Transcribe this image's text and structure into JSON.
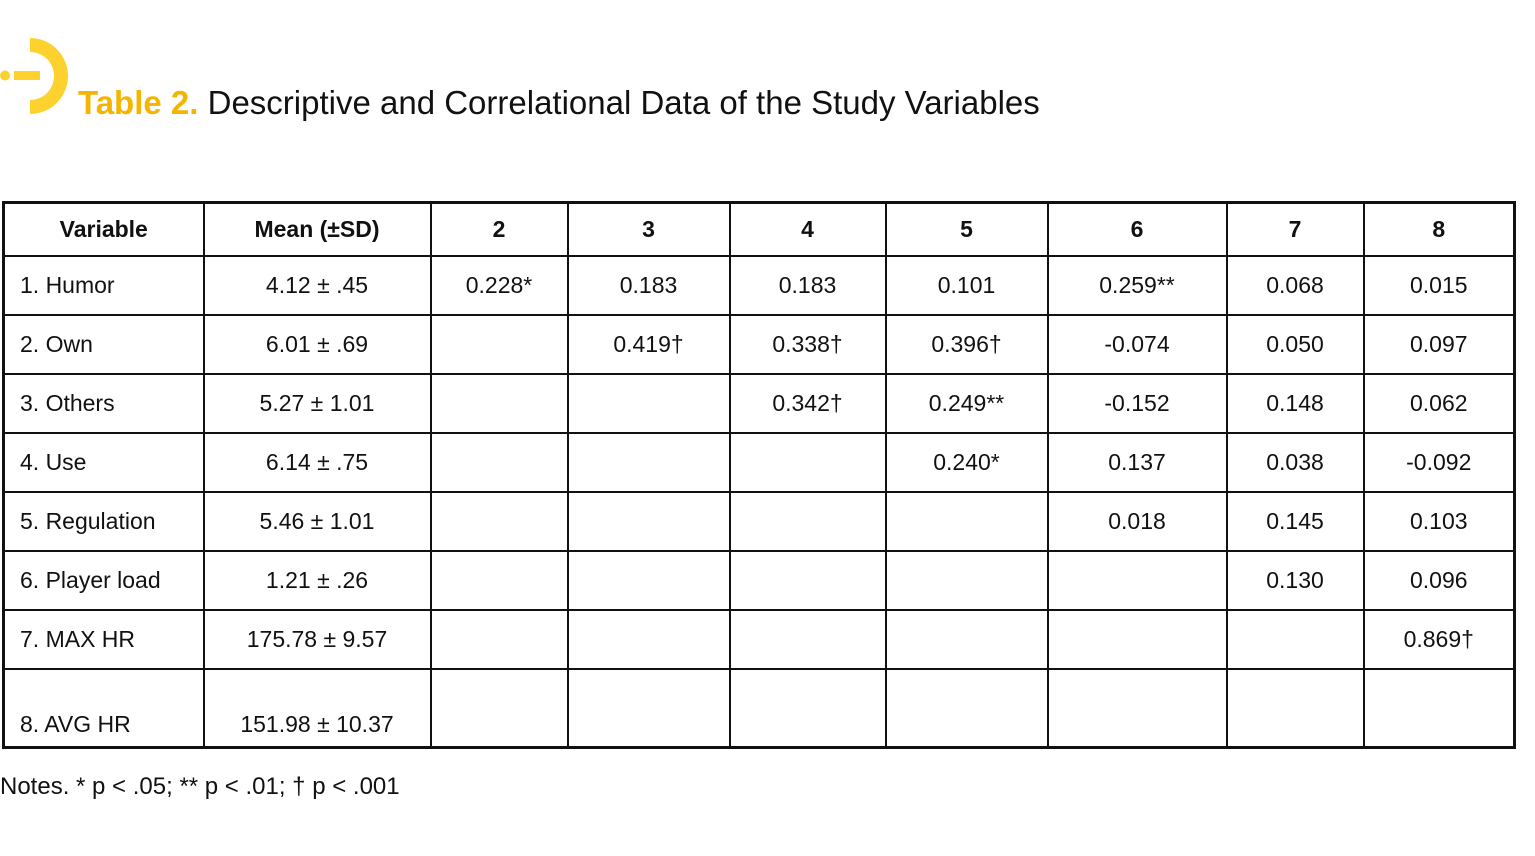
{
  "title": {
    "label": "Table 2.",
    "text": "Descriptive and Correlational Data of the Study Variables"
  },
  "colors": {
    "accent": "#f5b400",
    "logo": "#fdd22e"
  },
  "headers": [
    "Variable",
    "Mean (±SD)",
    "2",
    "3",
    "4",
    "5",
    "6",
    "7",
    "8"
  ],
  "rows": [
    {
      "variable": "1. Humor",
      "mean": "4.12 ± .45",
      "cells": [
        "0.228*",
        "0.183",
        "0.183",
        "0.101",
        "0.259**",
        "0.068",
        "0.015"
      ]
    },
    {
      "variable": "2. Own",
      "mean": "6.01 ± .69",
      "cells": [
        "",
        "0.419†",
        "0.338†",
        "0.396†",
        "-0.074",
        "0.050",
        "0.097"
      ]
    },
    {
      "variable": "3. Others",
      "mean": "5.27 ± 1.01",
      "cells": [
        "",
        "",
        "0.342†",
        "0.249**",
        "-0.152",
        "0.148",
        "0.062"
      ]
    },
    {
      "variable": "4. Use",
      "mean": "6.14 ± .75",
      "cells": [
        "",
        "",
        "",
        "0.240*",
        "0.137",
        "0.038",
        "-0.092"
      ]
    },
    {
      "variable": "5. Regulation",
      "mean": "5.46 ± 1.01",
      "cells": [
        "",
        "",
        "",
        "",
        "0.018",
        "0.145",
        "0.103"
      ]
    },
    {
      "variable": "6. Player load",
      "mean": "1.21 ± .26",
      "cells": [
        "",
        "",
        "",
        "",
        "",
        "0.130",
        "0.096"
      ]
    },
    {
      "variable": "7. MAX HR",
      "mean": "175.78 ± 9.57",
      "cells": [
        "",
        "",
        "",
        "",
        "",
        "",
        "0.869†"
      ]
    },
    {
      "variable": "8. AVG HR",
      "mean": "151.98 ± 10.37",
      "cells": [
        "",
        "",
        "",
        "",
        "",
        "",
        ""
      ]
    }
  ],
  "notes": "Notes. * p < .05; ** p < .01; † p < .001"
}
